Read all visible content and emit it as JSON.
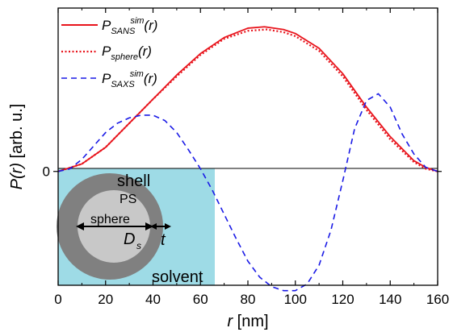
{
  "chart_data": {
    "type": "line",
    "xlabel": {
      "symbol": "r",
      "unit": " [nm]"
    },
    "ylabel": {
      "symbol": "P(r)",
      "unit": " [arb. u.]"
    },
    "xlim": [
      0,
      160
    ],
    "ylim": [
      -0.85,
      1.22
    ],
    "xticks": [
      "0",
      "20",
      "40",
      "60",
      "80",
      "100",
      "120",
      "140",
      "160"
    ],
    "xtick_values": [
      0,
      20,
      40,
      60,
      80,
      100,
      120,
      140,
      160
    ],
    "yticks": [
      "0"
    ],
    "ytick_values": [
      0
    ],
    "zero_line": true,
    "legend": {
      "placement": "top-left",
      "entries": [
        {
          "main": "P",
          "sub": "SANS",
          "sup": "sim",
          "arg": "(r)"
        },
        {
          "main": "P",
          "sub": "sphere",
          "sup": "",
          "arg": "(r)"
        },
        {
          "main": "P",
          "sub": "SAXS",
          "sup": "sim",
          "arg": "(r)"
        }
      ]
    },
    "series": [
      {
        "style": "solid",
        "color": "#e8141c",
        "x": [
          0,
          10,
          20,
          30,
          40,
          50,
          60,
          70,
          80,
          87,
          95,
          100,
          110,
          120,
          130,
          140,
          150,
          155,
          160
        ],
        "y": [
          0,
          0.056,
          0.18,
          0.36,
          0.54,
          0.72,
          0.88,
          1.0,
          1.07,
          1.08,
          1.06,
          1.03,
          0.92,
          0.73,
          0.48,
          0.26,
          0.08,
          0.03,
          0
        ]
      },
      {
        "style": "dotted",
        "color": "#e8141c",
        "x": [
          0,
          10,
          20,
          30,
          40,
          50,
          60,
          70,
          80,
          88,
          95,
          100,
          110,
          120,
          130,
          140,
          150,
          155,
          160
        ],
        "y": [
          0,
          0.056,
          0.18,
          0.36,
          0.54,
          0.71,
          0.87,
          0.99,
          1.05,
          1.06,
          1.04,
          1.01,
          0.9,
          0.71,
          0.46,
          0.24,
          0.07,
          0.02,
          0
        ]
      },
      {
        "style": "dashed",
        "color": "#1a1ae6",
        "x": [
          0,
          5,
          10,
          15,
          20,
          25,
          30,
          35,
          40,
          45,
          50,
          55,
          60,
          65,
          70,
          75,
          80,
          85,
          90,
          95,
          100,
          105,
          110,
          115,
          120,
          125,
          130,
          135,
          140,
          145,
          150,
          155,
          160
        ],
        "y": [
          0,
          0.02,
          0.09,
          0.19,
          0.29,
          0.36,
          0.4,
          0.42,
          0.42,
          0.38,
          0.29,
          0.16,
          0.02,
          -0.14,
          -0.32,
          -0.5,
          -0.67,
          -0.79,
          -0.86,
          -0.89,
          -0.89,
          -0.84,
          -0.7,
          -0.44,
          -0.07,
          0.32,
          0.53,
          0.58,
          0.48,
          0.28,
          0.13,
          0.03,
          0
        ]
      }
    ]
  },
  "inset": {
    "labels": {
      "shell": "shell",
      "core": "PS",
      "sphere": "sphere",
      "diameter": "D",
      "diameter_sub": "s",
      "thickness": "t",
      "solvent": "solvent"
    },
    "colors": {
      "solvent": "#9edbe6",
      "shell": "#808080",
      "core": "#c8c8c8"
    }
  }
}
